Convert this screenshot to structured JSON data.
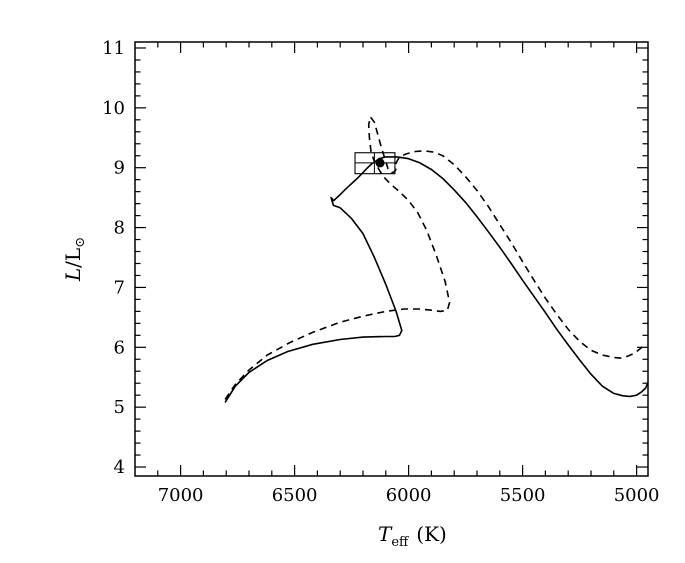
{
  "chart_data": {
    "type": "line",
    "title": "",
    "xlabel": {
      "main": "T",
      "sub": "eff",
      "unit": "(K)"
    },
    "ylabel": {
      "main": "L",
      "sep": "/",
      "sun": "L",
      "sun_symbol": "⊙"
    },
    "x_reversed": true,
    "xlim": [
      7200,
      4950
    ],
    "ylim": [
      3.85,
      11.1
    ],
    "xticks": [
      7000,
      6500,
      6000,
      5500,
      5000
    ],
    "yticks": [
      4,
      5,
      6,
      7,
      8,
      9,
      10,
      11
    ],
    "legend": "none",
    "grid": false,
    "series": [
      {
        "style": "solid",
        "color": "#000000",
        "x": [
          6805,
          6760,
          6700,
          6620,
          6530,
          6420,
          6300,
          6200,
          6100,
          6060,
          6040,
          6030,
          6055,
          6100,
          6150,
          6200,
          6250,
          6300,
          6330,
          6340,
          6328,
          6320,
          6300,
          6280,
          6260,
          6240,
          6220,
          6200,
          6180,
          6160,
          6140,
          6130,
          6100,
          6050,
          6000,
          5950,
          5900,
          5850,
          5800,
          5750,
          5700,
          5650,
          5600,
          5550,
          5500,
          5450,
          5400,
          5350,
          5300,
          5250,
          5200,
          5150,
          5100,
          5060,
          5030,
          5000,
          4980,
          4960,
          4950
        ],
        "y": [
          5.08,
          5.35,
          5.58,
          5.78,
          5.93,
          6.05,
          6.13,
          6.17,
          6.18,
          6.18,
          6.2,
          6.28,
          6.6,
          7.05,
          7.5,
          7.9,
          8.15,
          8.33,
          8.37,
          8.5,
          8.45,
          8.48,
          8.55,
          8.63,
          8.7,
          8.77,
          8.84,
          8.92,
          9.0,
          9.07,
          9.12,
          9.15,
          9.18,
          9.18,
          9.15,
          9.08,
          8.97,
          8.82,
          8.63,
          8.42,
          8.18,
          7.93,
          7.67,
          7.4,
          7.12,
          6.85,
          6.58,
          6.3,
          6.04,
          5.79,
          5.55,
          5.35,
          5.23,
          5.19,
          5.18,
          5.2,
          5.25,
          5.32,
          5.42
        ]
      },
      {
        "style": "dashed",
        "color": "#000000",
        "x": [
          6805,
          6760,
          6700,
          6620,
          6520,
          6420,
          6300,
          6200,
          6100,
          6020,
          5950,
          5900,
          5860,
          5830,
          5820,
          5840,
          5880,
          5920,
          5960,
          6000,
          6040,
          6080,
          6110,
          6130,
          6150,
          6165,
          6172,
          6175,
          6168,
          6150,
          6120,
          6100,
          6090,
          6075,
          6060,
          6050,
          6055,
          6040,
          6010,
          5970,
          5930,
          5890,
          5850,
          5800,
          5750,
          5700,
          5650,
          5600,
          5550,
          5500,
          5450,
          5400,
          5350,
          5300,
          5250,
          5200,
          5150,
          5100,
          5070,
          5040,
          5010,
          4990,
          4970,
          4960
        ],
        "y": [
          5.13,
          5.38,
          5.62,
          5.87,
          6.08,
          6.25,
          6.42,
          6.52,
          6.6,
          6.64,
          6.64,
          6.62,
          6.6,
          6.62,
          6.75,
          7.1,
          7.55,
          7.95,
          8.25,
          8.45,
          8.6,
          8.73,
          8.85,
          8.97,
          9.1,
          9.27,
          9.5,
          9.72,
          9.85,
          9.76,
          9.35,
          9.1,
          8.98,
          8.91,
          8.94,
          9.02,
          9.08,
          9.18,
          9.23,
          9.27,
          9.28,
          9.26,
          9.2,
          9.05,
          8.85,
          8.62,
          8.35,
          8.05,
          7.75,
          7.43,
          7.12,
          6.82,
          6.55,
          6.3,
          6.1,
          5.95,
          5.87,
          5.83,
          5.82,
          5.85,
          5.9,
          5.96,
          6.02,
          6.05
        ]
      }
    ],
    "marker": {
      "x": 6125,
      "y": 9.08,
      "color": "#000000"
    },
    "box": {
      "x": [
        6235,
        6060
      ],
      "y": [
        8.9,
        9.25
      ],
      "x_mid": 6150,
      "y_mid": 9.08
    }
  }
}
